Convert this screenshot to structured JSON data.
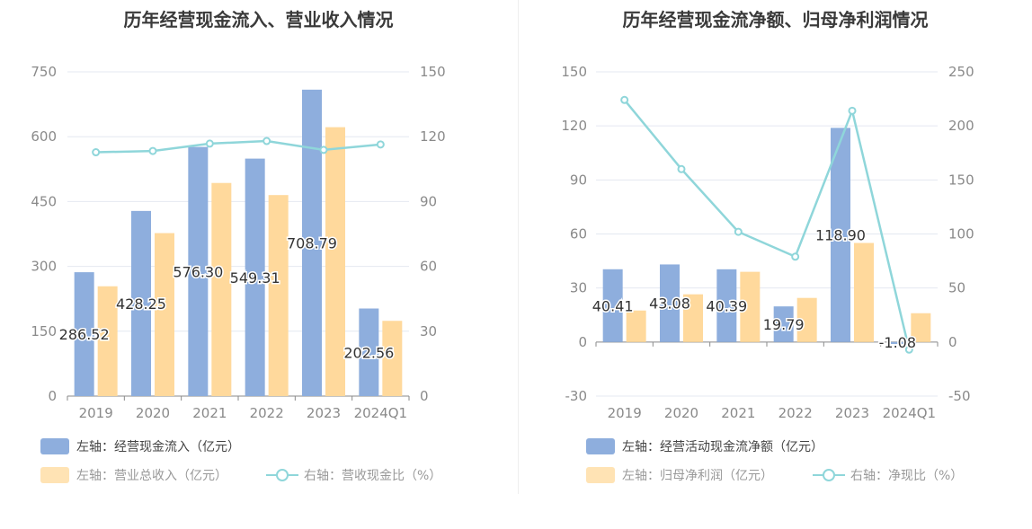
{
  "chart_data": [
    {
      "type": "bar",
      "title": "历年经营现金流入、营业收入情况",
      "categories": [
        "2019",
        "2020",
        "2021",
        "2022",
        "2023",
        "2024Q1"
      ],
      "y_left": {
        "ticks": [
          "750",
          "600",
          "450",
          "300",
          "150",
          "0"
        ],
        "ylim": [
          0,
          750
        ]
      },
      "y_right": {
        "ticks": [
          "150",
          "120",
          "90",
          "60",
          "30",
          "0"
        ],
        "ylim": [
          0,
          150
        ]
      },
      "grid": true,
      "series": [
        {
          "name": "左轴：经营现金流入（亿元）",
          "axis": "left",
          "type": "bar",
          "values": [
            286.52,
            428.25,
            576.3,
            549.31,
            708.79,
            202.56
          ],
          "labels": [
            "286.52",
            "428.25",
            "576.30",
            "549.31",
            "708.79",
            "202.56"
          ],
          "color": "#8eaedd"
        },
        {
          "name": "左轴：营业总收入（亿元）",
          "axis": "left",
          "type": "bar",
          "values": [
            254,
            377,
            493,
            465,
            622,
            174
          ],
          "color": "#ffd99c"
        },
        {
          "name": "右轴：营收现金比（%）",
          "axis": "right",
          "type": "line",
          "values": [
            112.8,
            113.4,
            116.8,
            118.0,
            113.9,
            116.4
          ],
          "color": "#8fd6da"
        }
      ],
      "legend_position": "bottom-left"
    },
    {
      "type": "bar",
      "title": "历年经营现金流净额、归母净利润情况",
      "categories": [
        "2019",
        "2020",
        "2021",
        "2022",
        "2023",
        "2024Q1"
      ],
      "y_left": {
        "ticks": [
          "150",
          "120",
          "90",
          "60",
          "30",
          "0",
          "-30"
        ],
        "ylim": [
          -30,
          150
        ]
      },
      "y_right": {
        "ticks": [
          "250",
          "200",
          "150",
          "100",
          "50",
          "0",
          "-50"
        ],
        "ylim": [
          -50,
          250
        ]
      },
      "grid": true,
      "series": [
        {
          "name": "左轴：经营活动现金流净额（亿元）",
          "axis": "left",
          "type": "bar",
          "values": [
            40.41,
            43.08,
            40.39,
            19.79,
            118.9,
            -1.08
          ],
          "labels": [
            "40.41",
            "43.08",
            "40.39",
            "19.79",
            "118.90",
            "-1.08"
          ],
          "color": "#8eaedd"
        },
        {
          "name": "左轴：归母净利润（亿元）",
          "axis": "left",
          "type": "bar",
          "values": [
            17.5,
            26.5,
            39.0,
            24.5,
            55.0,
            16.0
          ],
          "color": "#ffd99c"
        },
        {
          "name": "右轴：净现比（%）",
          "axis": "right",
          "type": "line",
          "values": [
            224,
            160,
            102,
            79,
            214,
            -7
          ],
          "color": "#8fd6da"
        }
      ],
      "legend_position": "bottom-left"
    }
  ]
}
